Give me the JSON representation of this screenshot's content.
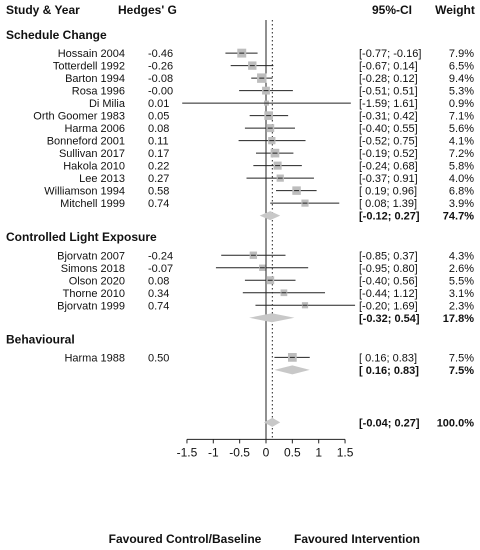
{
  "headers": {
    "study": "Study & Year",
    "effect": "Hedges' G",
    "ci": "95%-CI",
    "weight": "Weight"
  },
  "footer": {
    "left": "Favoured Control/Baseline",
    "right": "Favoured Intervention"
  },
  "colors": {
    "box": "#bdbdbd",
    "diamond": "#c8c8c8",
    "line": "#222222"
  },
  "chart_data": {
    "type": "forest",
    "x_ticks": [
      "-1.5",
      "-1",
      "-0.5",
      "0",
      "0.5",
      "1",
      "1.5"
    ],
    "xlim": [
      -1.6,
      1.6
    ],
    "reference_line": 0,
    "dotted_line": 0.12,
    "groups": [
      {
        "name": "Schedule Change",
        "studies": [
          {
            "label": "Hossain 2004",
            "g": -0.46,
            "g_text": "-0.46",
            "lo": -0.77,
            "hi": -0.16,
            "ci_text": "[-0.77; -0.16]",
            "weight": "7.9%"
          },
          {
            "label": "Totterdell 1992",
            "g": -0.26,
            "g_text": "-0.26",
            "lo": -0.67,
            "hi": 0.14,
            "ci_text": "[-0.67; 0.14]",
            "weight": "6.5%"
          },
          {
            "label": "Barton 1994",
            "g": -0.08,
            "g_text": "-0.08",
            "lo": -0.28,
            "hi": 0.12,
            "ci_text": "[-0.28; 0.12]",
            "weight": "9.4%"
          },
          {
            "label": "Rosa 1996",
            "g": 0.0,
            "g_text": "-0.00",
            "lo": -0.51,
            "hi": 0.51,
            "ci_text": "[-0.51; 0.51]",
            "weight": "5.3%"
          },
          {
            "label": "Di Milia",
            "g": 0.01,
            "g_text": "0.01",
            "lo": -1.59,
            "hi": 1.61,
            "ci_text": "[-1.59; 1.61]",
            "weight": "0.9%"
          },
          {
            "label": "Orth Goomer 1983",
            "g": 0.05,
            "g_text": "0.05",
            "lo": -0.31,
            "hi": 0.42,
            "ci_text": "[-0.31; 0.42]",
            "weight": "7.1%"
          },
          {
            "label": "Harma 2006",
            "g": 0.08,
            "g_text": "0.08",
            "lo": -0.4,
            "hi": 0.55,
            "ci_text": "[-0.40; 0.55]",
            "weight": "5.6%"
          },
          {
            "label": "Bonneford 2001",
            "g": 0.11,
            "g_text": "0.11",
            "lo": -0.52,
            "hi": 0.75,
            "ci_text": "[-0.52; 0.75]",
            "weight": "4.1%"
          },
          {
            "label": "Sullivan 2017",
            "g": 0.17,
            "g_text": "0.17",
            "lo": -0.19,
            "hi": 0.52,
            "ci_text": "[-0.19; 0.52]",
            "weight": "7.2%"
          },
          {
            "label": "Hakola 2010",
            "g": 0.22,
            "g_text": "0.22",
            "lo": -0.24,
            "hi": 0.68,
            "ci_text": "[-0.24; 0.68]",
            "weight": "5.8%"
          },
          {
            "label": "Lee 2013",
            "g": 0.27,
            "g_text": "0.27",
            "lo": -0.37,
            "hi": 0.91,
            "ci_text": "[-0.37; 0.91]",
            "weight": "4.0%"
          },
          {
            "label": "Williamson 1994",
            "g": 0.58,
            "g_text": "0.58",
            "lo": 0.19,
            "hi": 0.96,
            "ci_text": "[ 0.19; 0.96]",
            "weight": "6.8%"
          },
          {
            "label": "Mitchell 1999",
            "g": 0.74,
            "g_text": "0.74",
            "lo": 0.08,
            "hi": 1.39,
            "ci_text": "[ 0.08; 1.39]",
            "weight": "3.9%"
          }
        ],
        "summary": {
          "g": 0.08,
          "lo": -0.12,
          "hi": 0.27,
          "ci_text": "[-0.12; 0.27]",
          "weight": "74.7%"
        }
      },
      {
        "name": "Controlled Light Exposure",
        "studies": [
          {
            "label": "Bjorvatn 2007",
            "g": -0.24,
            "g_text": "-0.24",
            "lo": -0.85,
            "hi": 0.37,
            "ci_text": "[-0.85; 0.37]",
            "weight": "4.3%"
          },
          {
            "label": "Simons 2018",
            "g": -0.07,
            "g_text": "-0.07",
            "lo": -0.95,
            "hi": 0.8,
            "ci_text": "[-0.95; 0.80]",
            "weight": "2.6%"
          },
          {
            "label": "Olson 2020",
            "g": 0.08,
            "g_text": "0.08",
            "lo": -0.4,
            "hi": 0.56,
            "ci_text": "[-0.40; 0.56]",
            "weight": "5.5%"
          },
          {
            "label": "Thorne 2010",
            "g": 0.34,
            "g_text": "0.34",
            "lo": -0.44,
            "hi": 1.12,
            "ci_text": "[-0.44; 1.12]",
            "weight": "3.1%"
          },
          {
            "label": "Bjorvatn 1999",
            "g": 0.74,
            "g_text": "0.74",
            "lo": -0.2,
            "hi": 1.69,
            "ci_text": "[-0.20; 1.69]",
            "weight": "2.3%"
          }
        ],
        "summary": {
          "g": 0.11,
          "lo": -0.32,
          "hi": 0.54,
          "ci_text": "[-0.32; 0.54]",
          "weight": "17.8%"
        }
      },
      {
        "name": "Behavioural",
        "studies": [
          {
            "label": "Harma 1988",
            "g": 0.5,
            "g_text": "0.50",
            "lo": 0.16,
            "hi": 0.83,
            "ci_text": "[ 0.16; 0.83]",
            "weight": "7.5%"
          }
        ],
        "summary": {
          "g": 0.5,
          "lo": 0.16,
          "hi": 0.83,
          "ci_text": "[ 0.16; 0.83]",
          "weight": "7.5%"
        }
      }
    ],
    "overall": {
      "g": 0.12,
      "lo": -0.04,
      "hi": 0.27,
      "ci_text": "[-0.04; 0.27]",
      "weight": "100.0%"
    }
  }
}
